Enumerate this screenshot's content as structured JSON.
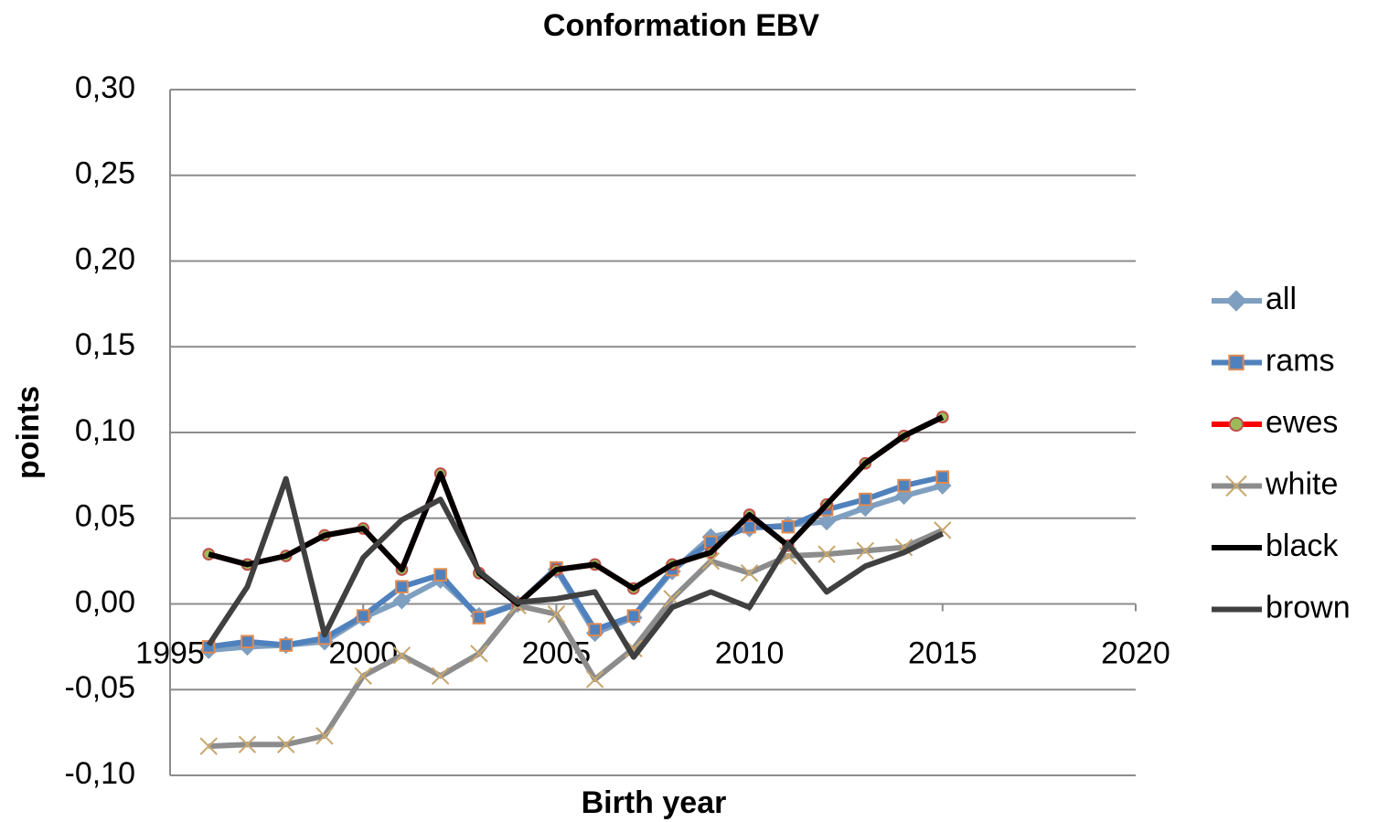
{
  "chart_data": {
    "type": "line",
    "title": "Conformation EBV",
    "xlabel": "Birth year",
    "ylabel": "points",
    "x": [
      1996,
      1997,
      1998,
      1999,
      2000,
      2001,
      2002,
      2003,
      2004,
      2005,
      2006,
      2007,
      2008,
      2009,
      2010,
      2011,
      2012,
      2013,
      2014,
      2015
    ],
    "xlim": [
      1995,
      2020
    ],
    "xticks": [
      1995,
      2000,
      2005,
      2010,
      2015,
      2020
    ],
    "ylim": [
      -0.1,
      0.3
    ],
    "yticks": [
      {
        "value": -0.1,
        "label": "-0,10"
      },
      {
        "value": -0.05,
        "label": "-0,05"
      },
      {
        "value": 0,
        "label": "0,00"
      },
      {
        "value": 0.05,
        "label": "0,05"
      },
      {
        "value": 0.1,
        "label": "0,10"
      },
      {
        "value": 0.15,
        "label": "0,15"
      },
      {
        "value": 0.2,
        "label": "0,20"
      },
      {
        "value": 0.25,
        "label": "0,25"
      },
      {
        "value": 0.3,
        "label": "0,30"
      }
    ],
    "grid": true,
    "legend": "right",
    "series": [
      {
        "name": "all",
        "color": "#7f9fc0",
        "marker": "diamond",
        "marker_color": "#7f9fc0",
        "values": [
          -0.027,
          -0.025,
          -0.024,
          -0.022,
          -0.008,
          0.002,
          0.014,
          -0.007,
          0.0,
          0.02,
          -0.017,
          -0.008,
          0.019,
          0.039,
          0.044,
          0.046,
          0.048,
          0.056,
          0.063,
          0.069
        ]
      },
      {
        "name": "rams",
        "color": "#4f81bd",
        "marker": "square",
        "marker_color": "#e08a50",
        "values": [
          -0.025,
          -0.022,
          -0.024,
          -0.02,
          -0.007,
          0.01,
          0.017,
          -0.008,
          0.0,
          0.021,
          -0.015,
          -0.007,
          0.02,
          0.036,
          0.045,
          0.045,
          0.055,
          0.061,
          0.069,
          0.074
        ]
      },
      {
        "name": "ewes",
        "color": "#ff0000",
        "marker": "circle",
        "marker_color": "#9bbb59",
        "values": [
          0.029,
          0.023,
          0.028,
          0.04,
          0.044,
          0.02,
          0.076,
          0.018,
          0.0,
          0.02,
          0.023,
          0.009,
          0.023,
          0.03,
          0.052,
          0.034,
          0.058,
          0.082,
          0.098,
          0.109
        ]
      },
      {
        "name": "white",
        "color": "#8c8c8c",
        "marker": "x",
        "marker_color": "#c8a870",
        "values": [
          -0.083,
          -0.082,
          -0.082,
          -0.077,
          -0.042,
          -0.03,
          -0.042,
          -0.029,
          -0.001,
          -0.006,
          -0.044,
          -0.026,
          0.003,
          0.025,
          0.018,
          0.028,
          0.029,
          0.031,
          0.033,
          0.043
        ]
      },
      {
        "name": "black",
        "color": "#000000",
        "marker": null,
        "values": [
          0.029,
          0.023,
          0.028,
          0.04,
          0.044,
          0.02,
          0.076,
          0.018,
          0.0,
          0.02,
          0.023,
          0.009,
          0.023,
          0.03,
          0.052,
          0.034,
          0.058,
          0.082,
          0.098,
          0.109
        ]
      },
      {
        "name": "brown",
        "color": "#404040",
        "marker": null,
        "values": [
          -0.024,
          0.01,
          0.073,
          -0.018,
          0.027,
          0.049,
          0.061,
          0.019,
          0.001,
          0.003,
          0.007,
          -0.031,
          -0.002,
          0.007,
          -0.002,
          0.035,
          0.007,
          0.022,
          0.03,
          0.041
        ]
      }
    ]
  }
}
